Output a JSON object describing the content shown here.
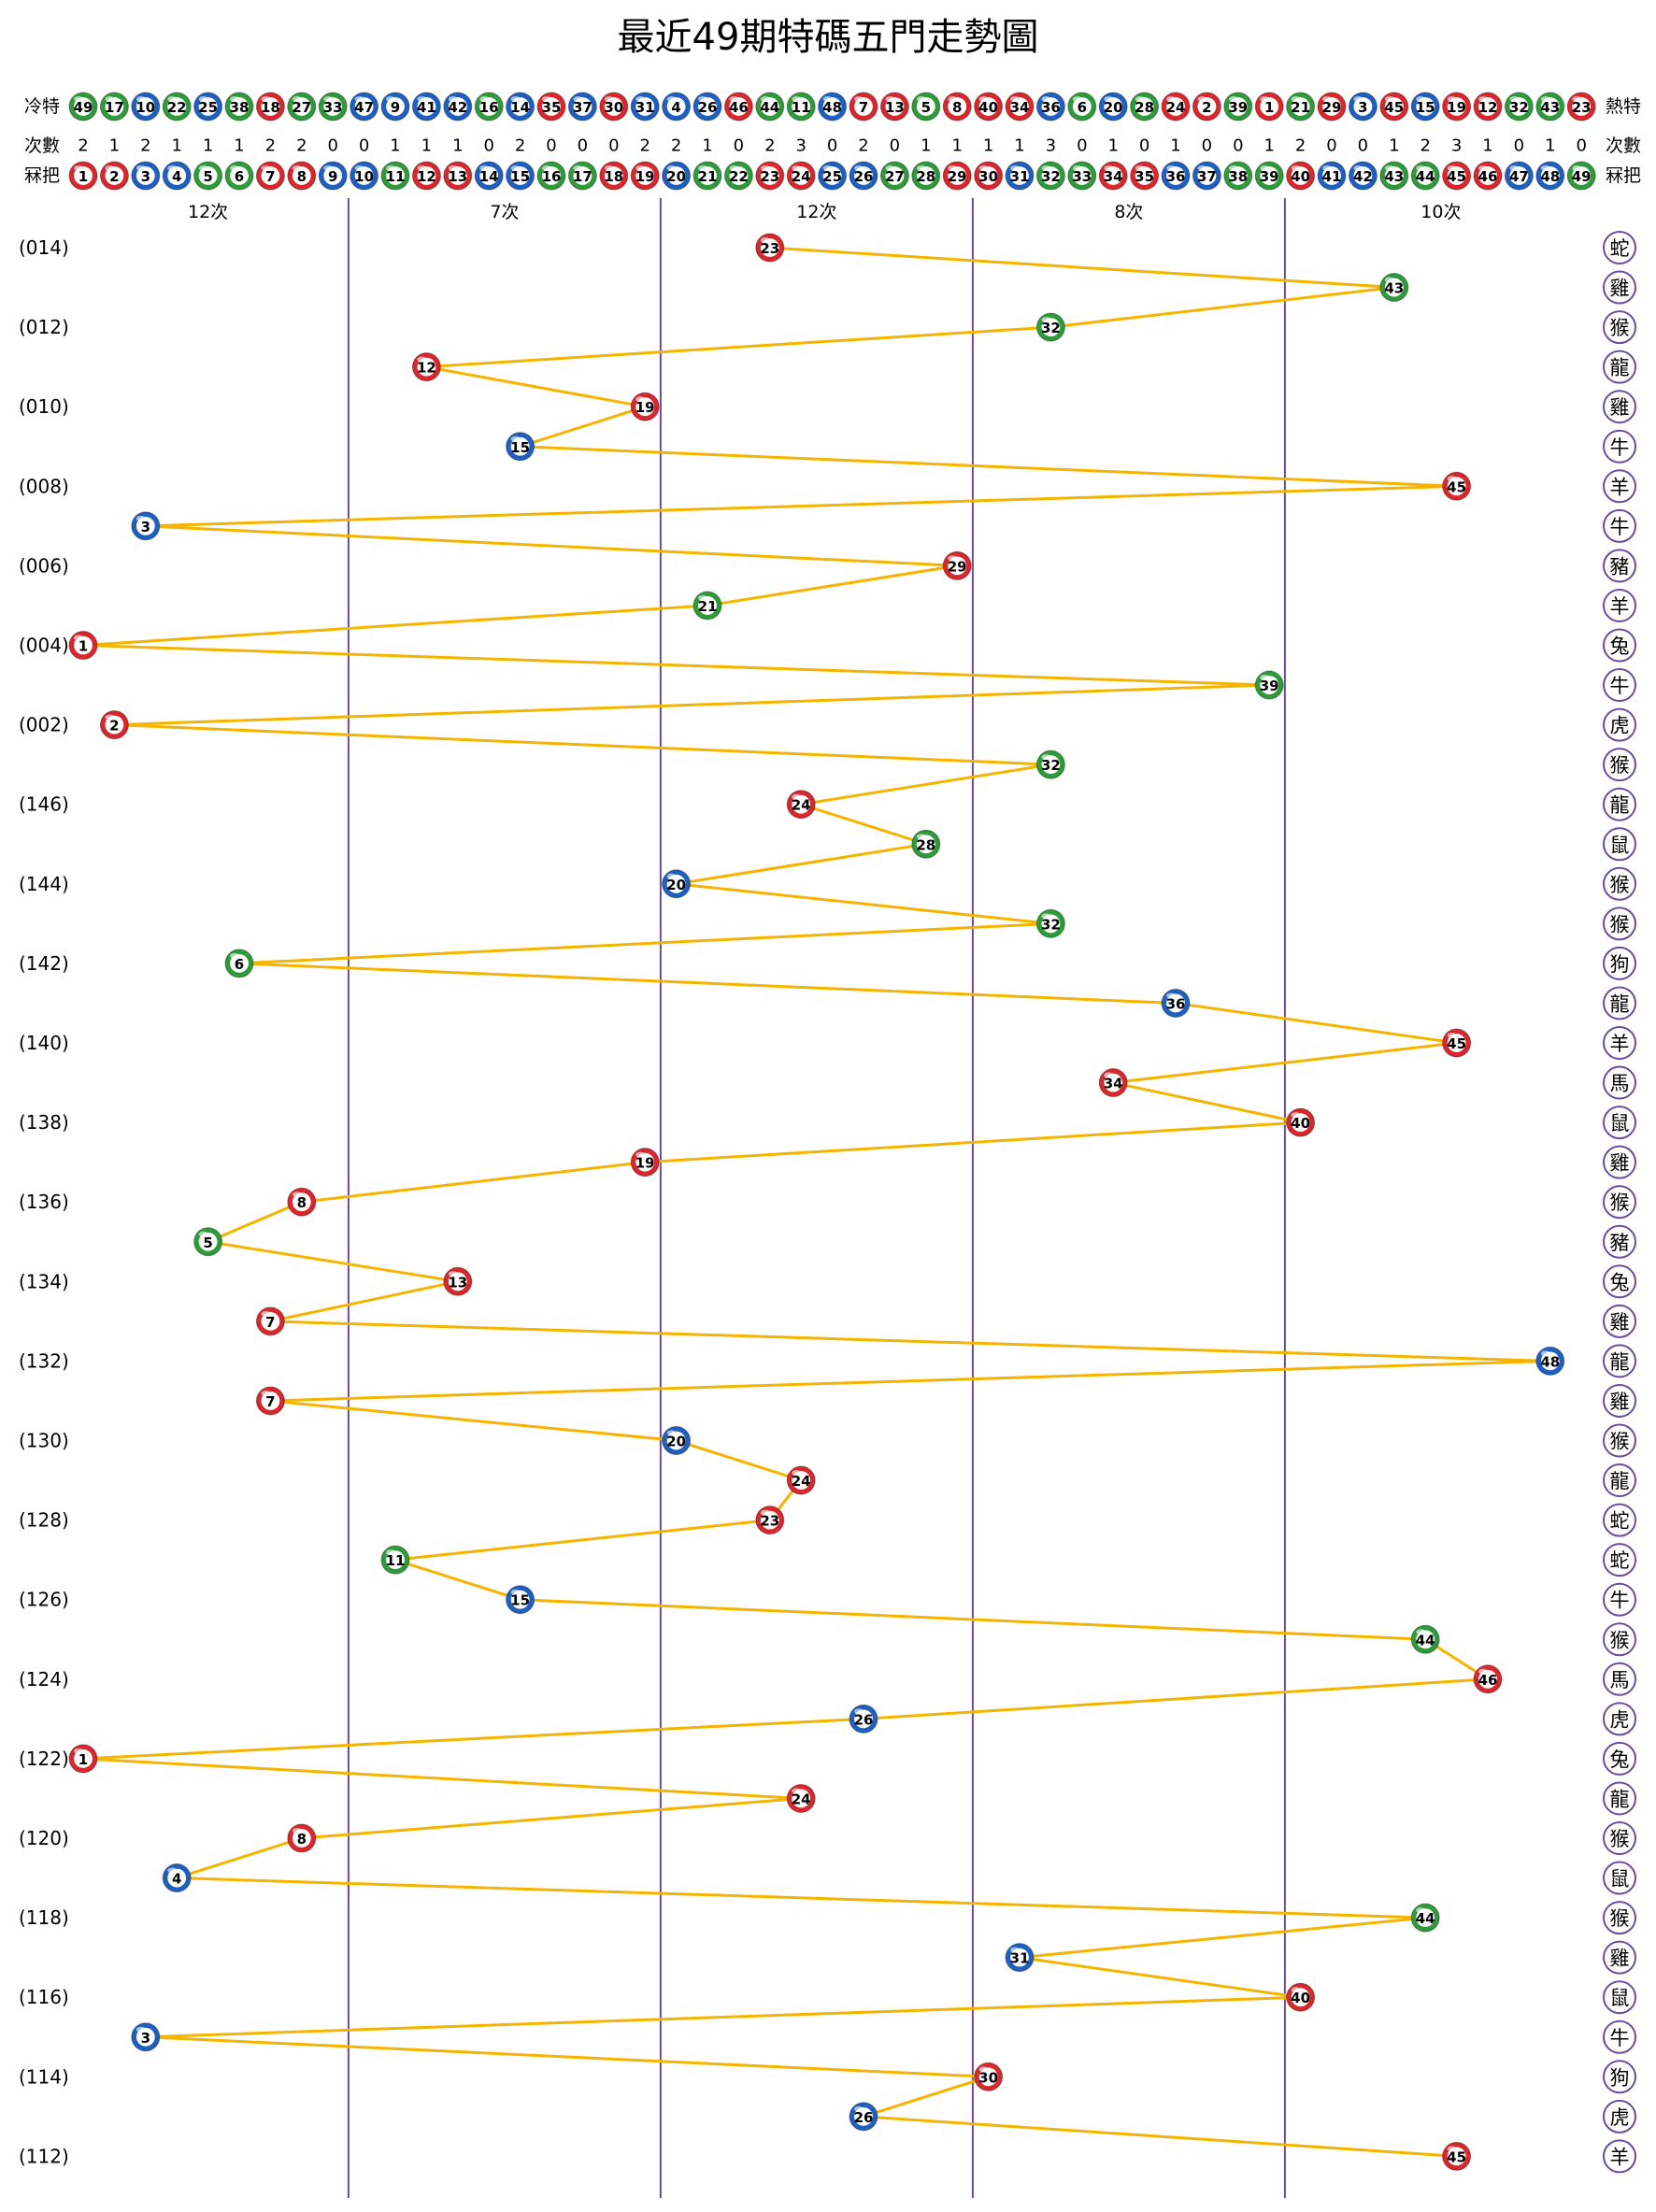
{
  "chart_data": {
    "type": "trend",
    "title": "最近49期特碼五門走勢圖",
    "header": {
      "cold_label": "冷特",
      "hot_label": "熱特",
      "ranking": [
        49,
        17,
        10,
        22,
        25,
        38,
        18,
        27,
        33,
        47,
        9,
        41,
        42,
        16,
        14,
        35,
        37,
        30,
        31,
        4,
        26,
        46,
        44,
        11,
        48,
        7,
        13,
        5,
        8,
        40,
        34,
        36,
        6,
        20,
        28,
        24,
        2,
        39,
        1,
        21,
        29,
        3,
        45,
        15,
        19,
        12,
        32,
        43,
        23
      ],
      "count_label": "次數",
      "counts": [
        2,
        1,
        2,
        1,
        1,
        1,
        2,
        2,
        0,
        0,
        1,
        1,
        1,
        0,
        2,
        0,
        0,
        0,
        2,
        2,
        1,
        0,
        2,
        3,
        0,
        2,
        0,
        1,
        1,
        1,
        1,
        3,
        0,
        1,
        0,
        1,
        0,
        0,
        1,
        2,
        0,
        0,
        1,
        2,
        3,
        1,
        0,
        1,
        0
      ],
      "number_label": "冧把",
      "numbers": [
        1,
        2,
        3,
        4,
        5,
        6,
        7,
        8,
        9,
        10,
        11,
        12,
        13,
        14,
        15,
        16,
        17,
        18,
        19,
        20,
        21,
        22,
        23,
        24,
        25,
        26,
        27,
        28,
        29,
        30,
        31,
        32,
        33,
        34,
        35,
        36,
        37,
        38,
        39,
        40,
        41,
        42,
        43,
        44,
        45,
        46,
        47,
        48,
        49
      ],
      "colors": [
        "#d8272d",
        "#d8272d",
        "#1f5fbf",
        "#1f5fbf",
        "#2f9a3a",
        "#2f9a3a",
        "#d8272d",
        "#d8272d",
        "#1f5fbf",
        "#1f5fbf",
        "#2f9a3a",
        "#d8272d",
        "#d8272d",
        "#1f5fbf",
        "#1f5fbf",
        "#2f9a3a",
        "#2f9a3a",
        "#d8272d",
        "#d8272d",
        "#1f5fbf",
        "#2f9a3a",
        "#2f9a3a",
        "#d8272d",
        "#d8272d",
        "#1f5fbf",
        "#1f5fbf",
        "#2f9a3a",
        "#2f9a3a",
        "#d8272d",
        "#d8272d",
        "#1f5fbf",
        "#2f9a3a",
        "#2f9a3a",
        "#d8272d",
        "#d8272d",
        "#1f5fbf",
        "#1f5fbf",
        "#2f9a3a",
        "#2f9a3a",
        "#d8272d",
        "#1f5fbf",
        "#1f5fbf",
        "#2f9a3a",
        "#2f9a3a",
        "#d8272d",
        "#d8272d",
        "#1f5fbf",
        "#1f5fbf",
        "#2f9a3a"
      ],
      "group_labels": [
        "12次",
        "7次",
        "12次",
        "8次",
        "10次"
      ]
    },
    "categories": [
      "(014)",
      null,
      "(012)",
      null,
      "(010)",
      null,
      "(008)",
      null,
      "(006)",
      null,
      "(004)",
      null,
      "(002)",
      null,
      "(146)",
      null,
      "(144)",
      null,
      "(142)",
      null,
      "(140)",
      null,
      "(138)",
      null,
      "(136)",
      null,
      "(134)",
      null,
      "(132)",
      null,
      "(130)",
      null,
      "(128)",
      null,
      "(126)",
      null,
      "(124)",
      null,
      "(122)",
      null,
      "(120)",
      null,
      "(118)",
      null,
      "(116)",
      null,
      "(114)",
      null,
      "(112)"
    ],
    "values": [
      23,
      43,
      32,
      12,
      19,
      15,
      45,
      3,
      29,
      21,
      1,
      39,
      2,
      32,
      24,
      28,
      20,
      32,
      6,
      36,
      45,
      34,
      40,
      19,
      8,
      5,
      13,
      7,
      48,
      7,
      20,
      24,
      23,
      11,
      15,
      44,
      46,
      26,
      1,
      24,
      8,
      4,
      44,
      31,
      40,
      3,
      30,
      26,
      45
    ],
    "zodiac": [
      "蛇",
      "雞",
      "猴",
      "龍",
      "雞",
      "牛",
      "羊",
      "牛",
      "豬",
      "羊",
      "兔",
      "牛",
      "虎",
      "猴",
      "龍",
      "鼠",
      "猴",
      "猴",
      "狗",
      "龍",
      "羊",
      "馬",
      "鼠",
      "雞",
      "猴",
      "豬",
      "兔",
      "雞",
      "龍",
      "雞",
      "猴",
      "龍",
      "蛇",
      "蛇",
      "牛",
      "猴",
      "馬",
      "虎",
      "兔",
      "龍",
      "猴",
      "鼠",
      "猴",
      "雞",
      "鼠",
      "牛",
      "狗",
      "虎",
      "羊"
    ],
    "line_color": "#f4b400",
    "divider_color": "#6a4c9c"
  }
}
